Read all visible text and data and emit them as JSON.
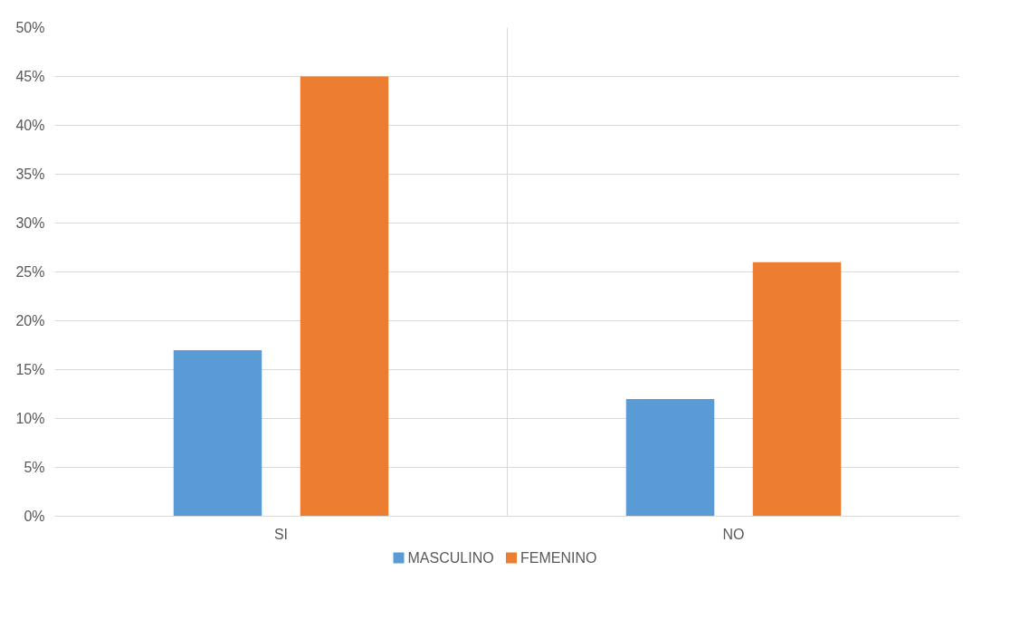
{
  "chart_data": {
    "type": "bar",
    "categories": [
      "SI",
      "NO"
    ],
    "series": [
      {
        "name": "MASCULINO",
        "color": "#5b9bd5",
        "values": [
          17,
          12
        ]
      },
      {
        "name": "FEMENINO",
        "color": "#ed7d31",
        "values": [
          45,
          26
        ]
      }
    ],
    "ylim": [
      0,
      50
    ],
    "yticks": [
      {
        "value": 0,
        "label": "0%"
      },
      {
        "value": 5,
        "label": "5%"
      },
      {
        "value": 10,
        "label": "10%"
      },
      {
        "value": 15,
        "label": "15%"
      },
      {
        "value": 20,
        "label": "20%"
      },
      {
        "value": 25,
        "label": "25%"
      },
      {
        "value": 30,
        "label": "30%"
      },
      {
        "value": 35,
        "label": "35%"
      },
      {
        "value": 40,
        "label": "40%"
      },
      {
        "value": 45,
        "label": "45%"
      },
      {
        "value": 50,
        "label": "50%"
      }
    ],
    "grid": true,
    "legend": "bottom"
  }
}
